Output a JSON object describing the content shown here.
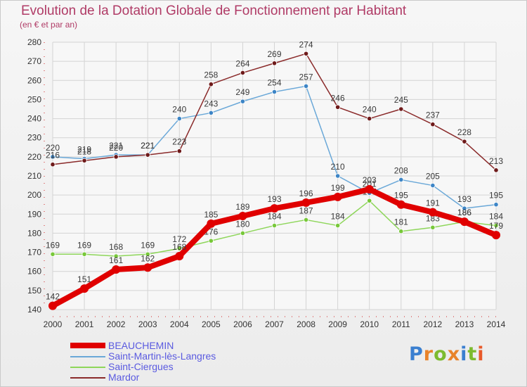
{
  "title": "Evolution de la Dotation Globale de Fonctionnement par Habitant",
  "subtitle": "(en € et par an)",
  "logo": {
    "text": "Proxiti",
    "letter_colors": [
      "#3a7fd0",
      "#e8832a",
      "#7dbb2f",
      "#e8832a",
      "#3a7fd0",
      "#7dbb2f",
      "#e85a2a"
    ]
  },
  "colors": {
    "grid": "#d4d4d4",
    "axis_dash": "#d22222"
  },
  "chart_data": {
    "type": "line",
    "x": [
      "2000",
      "2001",
      "2002",
      "2003",
      "2004",
      "2005",
      "2006",
      "2007",
      "2008",
      "2009",
      "2010",
      "2011",
      "2012",
      "2013",
      "2014"
    ],
    "ylim": [
      140,
      280
    ],
    "yticks": [
      "140",
      "150",
      "160",
      "170",
      "180",
      "190",
      "200",
      "210",
      "220",
      "230",
      "240",
      "250",
      "260",
      "270",
      "280"
    ],
    "grid": true,
    "legend_position": "bottom-left",
    "series": [
      {
        "name": "Saint-Ciergues",
        "color": "#8ed65a",
        "marker": "#78c83a",
        "values": [
          169,
          169,
          168,
          169,
          172,
          176,
          180,
          184,
          187,
          184,
          197,
          181,
          183,
          186,
          184
        ],
        "labels": [
          "169",
          "169",
          "168",
          "169",
          "172",
          "176",
          "180",
          "184",
          "187",
          "184",
          "197",
          "181",
          "183",
          "186",
          "184"
        ]
      },
      {
        "name": "Saint-Martin-lès-Langres",
        "color": "#6aa8d8",
        "marker": "#3d85c6",
        "values": [
          220,
          219,
          221,
          221,
          240,
          243,
          249,
          254,
          257,
          210,
          201,
          208,
          205,
          193,
          195
        ],
        "labels": [
          "220",
          "219",
          "221",
          "221",
          "240",
          "243",
          "249",
          "254",
          "257",
          "210",
          "201",
          "208",
          "205",
          "193",
          "195"
        ]
      },
      {
        "name": "Mardor",
        "color": "#8a2a2a",
        "marker": "#6e1a1a",
        "values": [
          216,
          218,
          220,
          221,
          223,
          258,
          264,
          269,
          274,
          246,
          240,
          245,
          237,
          228,
          213
        ],
        "labels": [
          "216",
          "218",
          "220",
          "221",
          "223",
          "258",
          "264",
          "269",
          "274",
          "246",
          "240",
          "245",
          "237",
          "228",
          "213"
        ]
      },
      {
        "name": "BEAUCHEMIN",
        "color": "#e00000",
        "marker": "#e00000",
        "thick": true,
        "values": [
          142,
          151,
          161,
          162,
          168,
          185,
          189,
          193,
          196,
          199,
          203,
          195,
          191,
          186,
          179
        ],
        "labels": [
          "142",
          "151",
          "161",
          "162",
          "168",
          "185",
          "189",
          "193",
          "196",
          "199",
          "203",
          "195",
          "191",
          "186",
          "179"
        ]
      }
    ]
  }
}
